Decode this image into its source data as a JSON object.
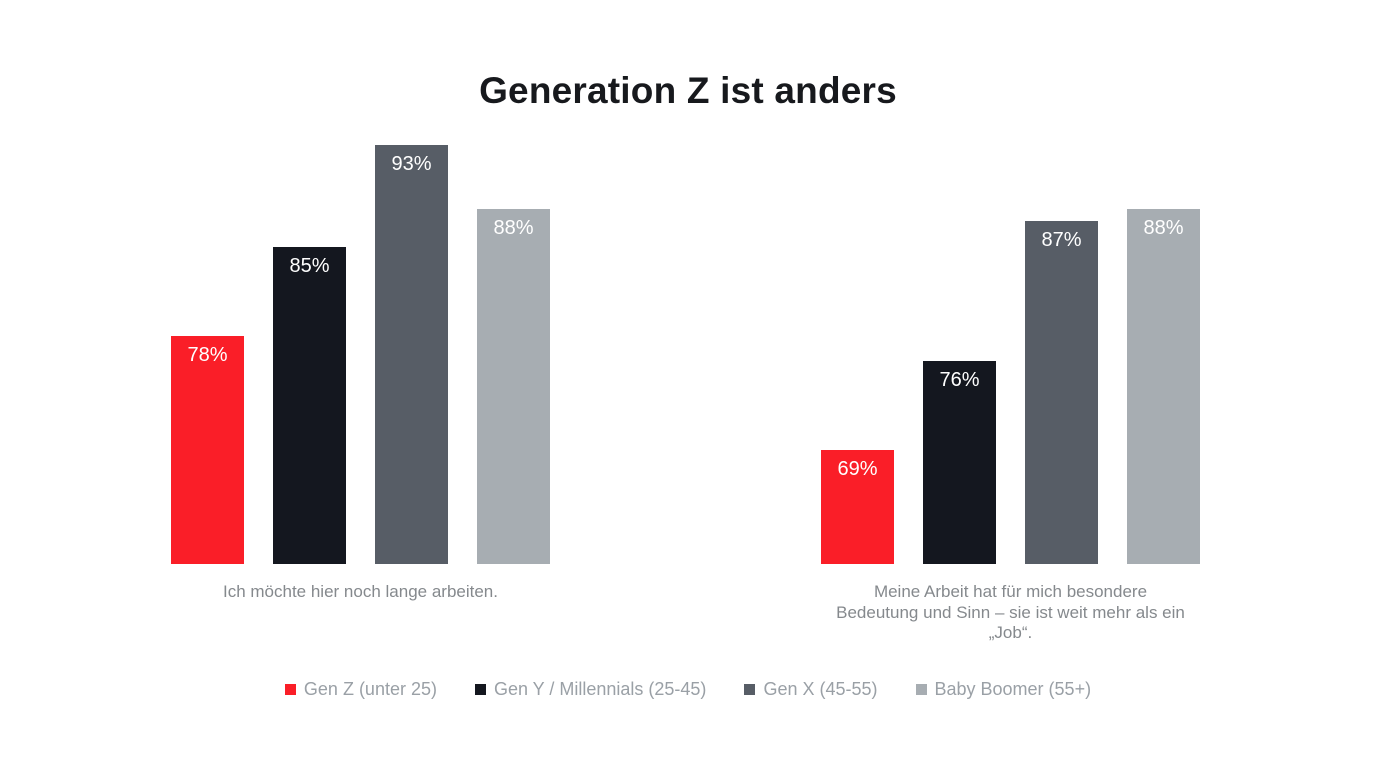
{
  "title": "Generation Z ist anders",
  "colors": {
    "background": "#ffffff",
    "title": "#17191d",
    "caption": "#85898d",
    "legend_text": "#9aa0a6",
    "bar_label": "#ffffff",
    "gen_z": "#fa1e28",
    "gen_y": "#14171f",
    "gen_x": "#575d66",
    "baby_boomer": "#a7adb2"
  },
  "chart_data": {
    "type": "bar",
    "title": "Generation Z ist anders",
    "categories": [
      "Ich möchte hier noch lange arbeiten.",
      "Meine Arbeit hat für mich besondere Bedeutung und Sinn – sie ist weit mehr als ein „Job“."
    ],
    "series": [
      {
        "name": "Gen Z (unter 25)",
        "key": "gen-z",
        "color": "#fa1e28",
        "values": [
          78,
          69
        ],
        "labels": [
          "78%",
          "69%"
        ]
      },
      {
        "name": "Gen Y / Millennials (25-45)",
        "key": "gen-y-millennials",
        "color": "#14171f",
        "values": [
          85,
          76
        ],
        "labels": [
          "85%",
          "76%"
        ]
      },
      {
        "name": "Gen X (45-55)",
        "key": "gen-x",
        "color": "#575d66",
        "values": [
          93,
          87
        ],
        "labels": [
          "93%",
          "87%"
        ]
      },
      {
        "name": "Baby Boomer (55+)",
        "key": "baby-boomer",
        "color": "#a7adb2",
        "values": [
          88,
          88
        ],
        "labels": [
          "88%",
          "88%"
        ]
      }
    ],
    "value_axis": {
      "min": 60,
      "max": 93,
      "unit": "%",
      "visible": false
    },
    "grid": false,
    "legend_position": "bottom",
    "data_labels": "inside-top"
  }
}
